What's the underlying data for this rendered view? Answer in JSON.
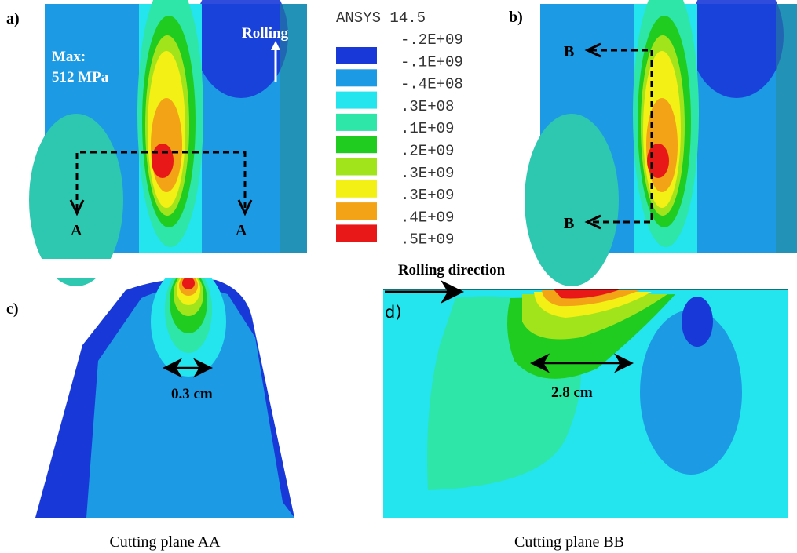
{
  "panels": {
    "a": {
      "label": "a)",
      "max_label": "Max:",
      "max_value": "512 MPa",
      "rolling": "Rolling",
      "cut_labels": [
        "A",
        "A"
      ]
    },
    "b": {
      "label": "b)",
      "cut_labels": [
        "B",
        "B"
      ]
    },
    "c": {
      "label": "c)",
      "dimension": "0.3 cm",
      "caption": "Cutting plane AA"
    },
    "d": {
      "label": "d)",
      "dimension": "2.8 cm",
      "caption": "Cutting plane BB",
      "direction": "Rolling direction"
    }
  },
  "legend": {
    "title": "ANSYS 14.5",
    "labels": [
      "-.2E+09",
      "-.1E+09",
      "-.4E+08",
      ".3E+08",
      ".1E+09",
      ".2E+09",
      ".3E+09",
      ".3E+09",
      ".4E+09",
      ".5E+09"
    ],
    "colors": [
      "#1838d8",
      "#1c9ae4",
      "#24e4ee",
      "#2ee6a8",
      "#20cc20",
      "#a2e41c",
      "#f2f014",
      "#f2a416",
      "#e81818"
    ]
  }
}
